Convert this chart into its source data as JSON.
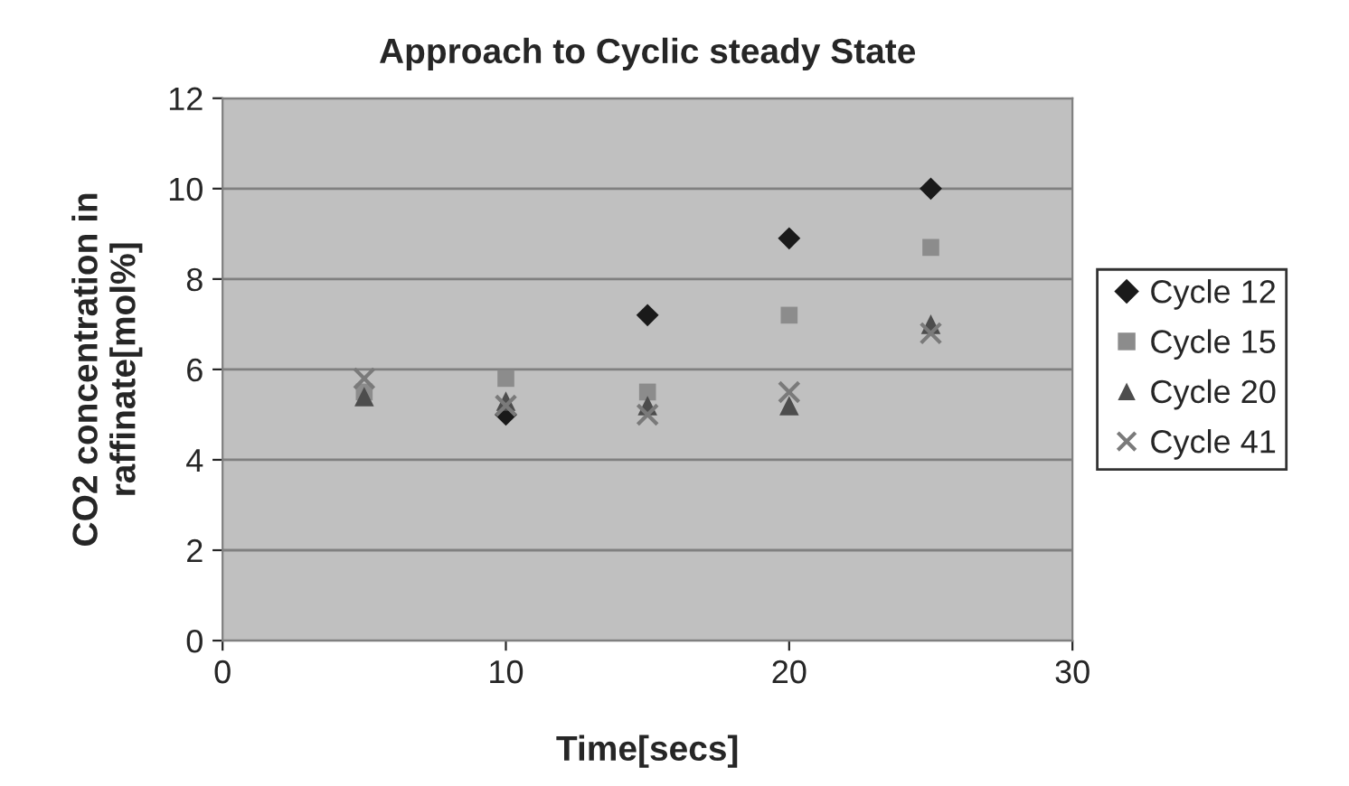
{
  "chart_data": {
    "type": "scatter",
    "title": "Approach to Cyclic steady State",
    "xlabel": "Time[secs]",
    "ylabel": "CO2 concentration in\nraffinate[mol%]",
    "x": [
      5,
      10,
      15,
      20,
      25
    ],
    "series": [
      {
        "name": "Cycle 12",
        "color": "#1a1a1a",
        "marker": "diamond",
        "values": [
          null,
          5.0,
          7.2,
          8.9,
          10.0
        ]
      },
      {
        "name": "Cycle 15",
        "color": "#8c8c8c",
        "marker": "square",
        "values": [
          5.5,
          5.8,
          5.5,
          7.2,
          8.7
        ]
      },
      {
        "name": "Cycle 20",
        "color": "#4d4d4d",
        "marker": "triangle",
        "values": [
          5.4,
          5.3,
          5.2,
          5.2,
          7.0
        ]
      },
      {
        "name": "Cycle 41",
        "color": "#7a7a7a",
        "marker": "cross",
        "values": [
          5.8,
          5.2,
          5.0,
          5.5,
          6.8
        ]
      }
    ],
    "xlim": [
      0,
      30
    ],
    "xticks": [
      0,
      10,
      20,
      30
    ],
    "ylim": [
      0,
      12
    ],
    "yticks": [
      0,
      2,
      4,
      6,
      8,
      10,
      12
    ],
    "grid": "y",
    "legend": "right"
  }
}
